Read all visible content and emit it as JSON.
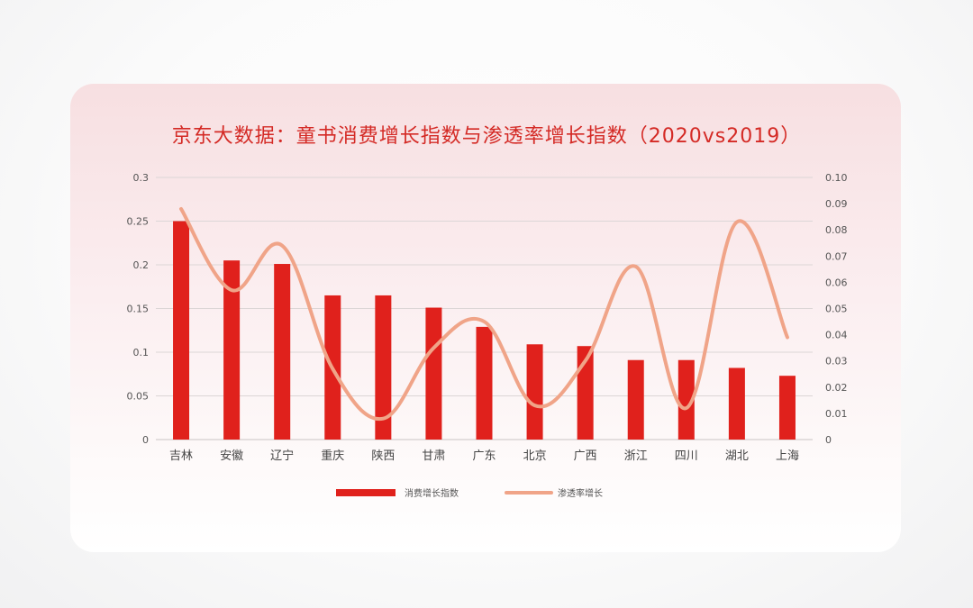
{
  "chart_data": {
    "type": "bar",
    "title": "京东大数据：童书消费增长指数与渗透率增长指数（2020vs2019）",
    "categories": [
      "吉林",
      "安徽",
      "辽宁",
      "重庆",
      "陕西",
      "甘肃",
      "广东",
      "北京",
      "广西",
      "浙江",
      "四川",
      "湖北",
      "上海"
    ],
    "series": [
      {
        "name": "消费增长指数",
        "type": "bar",
        "axis": "left",
        "color": "#e0211c",
        "values": [
          0.25,
          0.205,
          0.201,
          0.165,
          0.165,
          0.151,
          0.129,
          0.109,
          0.107,
          0.091,
          0.091,
          0.082,
          0.073
        ]
      },
      {
        "name": "渗透率增长",
        "type": "line",
        "smooth": true,
        "axis": "right",
        "color": "#f0a488",
        "values": [
          0.088,
          0.057,
          0.074,
          0.027,
          0.008,
          0.035,
          0.045,
          0.013,
          0.03,
          0.066,
          0.012,
          0.083,
          0.039
        ]
      }
    ],
    "y_left": {
      "min": 0,
      "max": 0.3,
      "ticks": [
        "0",
        "0.05",
        "0.1",
        "0.15",
        "0.2",
        "0.25",
        "0.3"
      ]
    },
    "y_right": {
      "min": 0,
      "max": 0.1,
      "ticks": [
        "0",
        "0.01",
        "0.02",
        "0.03",
        "0.04",
        "0.05",
        "0.06",
        "0.07",
        "0.08",
        "0.09",
        "0.10"
      ]
    },
    "grid": true,
    "legend_position": "bottom"
  }
}
